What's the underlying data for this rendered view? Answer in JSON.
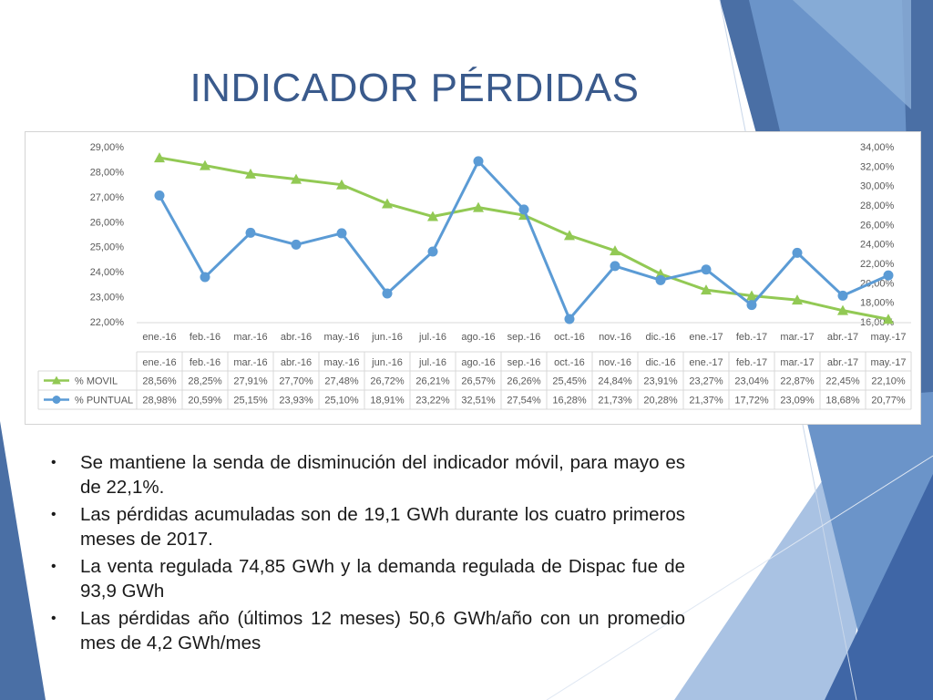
{
  "title": "INDICADOR  PÉRDIDAS",
  "colors": {
    "movil": "#92c954",
    "puntual": "#5b9bd5",
    "title": "#3a5a8c",
    "decor_dark": "#4a6fa5",
    "decor_mid": "#6b94c9",
    "decor_light": "#a9c2e3"
  },
  "chart_data": {
    "type": "line",
    "categories": [
      "ene.-16",
      "feb.-16",
      "mar.-16",
      "abr.-16",
      "may.-16",
      "jun.-16",
      "jul.-16",
      "ago.-16",
      "sep.-16",
      "oct.-16",
      "nov.-16",
      "dic.-16",
      "ene.-17",
      "feb.-17",
      "mar.-17",
      "abr.-17",
      "may.-17"
    ],
    "y_left": {
      "min": 22,
      "max": 29,
      "step": 1,
      "tick_labels": [
        "22,00%",
        "23,00%",
        "24,00%",
        "25,00%",
        "26,00%",
        "27,00%",
        "28,00%",
        "29,00%"
      ]
    },
    "y_right": {
      "min": 16,
      "max": 34,
      "step": 2,
      "tick_labels": [
        "16,00%",
        "18,00%",
        "20,00%",
        "22,00%",
        "24,00%",
        "26,00%",
        "28,00%",
        "30,00%",
        "32,00%",
        "34,00%"
      ]
    },
    "series": [
      {
        "name": "% MOVIL",
        "axis": "left",
        "marker": "triangle",
        "values": [
          28.56,
          28.25,
          27.91,
          27.7,
          27.48,
          26.72,
          26.21,
          26.57,
          26.26,
          25.45,
          24.84,
          23.91,
          23.27,
          23.04,
          22.87,
          22.45,
          22.1
        ],
        "labels": [
          "28,56%",
          "28,25%",
          "27,91%",
          "27,70%",
          "27,48%",
          "26,72%",
          "26,21%",
          "26,57%",
          "26,26%",
          "25,45%",
          "24,84%",
          "23,91%",
          "23,27%",
          "23,04%",
          "22,87%",
          "22,45%",
          "22,10%"
        ]
      },
      {
        "name": "% PUNTUAL",
        "axis": "right",
        "marker": "circle",
        "values": [
          28.98,
          20.59,
          25.15,
          23.93,
          25.1,
          18.91,
          23.22,
          32.51,
          27.54,
          16.28,
          21.73,
          20.28,
          21.37,
          17.72,
          23.09,
          18.68,
          20.77
        ],
        "labels": [
          "28,98%",
          "20,59%",
          "25,15%",
          "23,93%",
          "25,10%",
          "18,91%",
          "23,22%",
          "32,51%",
          "27,54%",
          "16,28%",
          "21,73%",
          "20,28%",
          "21,37%",
          "17,72%",
          "23,09%",
          "18,68%",
          "20,77%"
        ]
      }
    ],
    "grid": false,
    "legend": "data-table"
  },
  "bullets": [
    "Se mantiene la senda de disminución del indicador móvil, para mayo es de 22,1%.",
    "Las pérdidas acumuladas son de 19,1 GWh durante los cuatro primeros meses de 2017.",
    "La  venta regulada 74,85 GWh y la demanda regulada de Dispac fue de 93,9 GWh",
    "Las pérdidas año (últimos 12 meses) 50,6 GWh/año con un promedio mes de 4,2 GWh/mes"
  ],
  "bullet_symbol": "•"
}
